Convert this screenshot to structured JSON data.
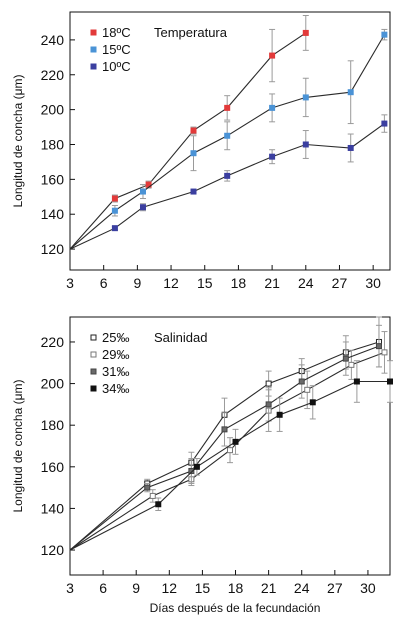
{
  "colors": {
    "axis": "#111111",
    "line": "#2b2b2b",
    "temp_18": "#e23a3a",
    "temp_15": "#4a93d6",
    "temp_10": "#3b3fa0",
    "errorbar": "#9a9a9a"
  },
  "xlabel_shared": "Días después de la fecundación",
  "chart_data": [
    {
      "type": "line",
      "ylabel": "Longitud de concha (μm)",
      "legend_title": "Temperatura",
      "legend_placement": "top-left",
      "x_ticks": [
        3,
        6,
        9,
        12,
        15,
        18,
        21,
        24,
        27,
        30
      ],
      "y_ticks": [
        120,
        140,
        160,
        180,
        200,
        220,
        240
      ],
      "xlim": [
        3,
        31.5
      ],
      "ylim": [
        108,
        256
      ],
      "series": [
        {
          "name": "18ºC",
          "marker": "square-red",
          "points": [
            {
              "x": 3,
              "y": 120,
              "err": 0
            },
            {
              "x": 7,
              "y": 149,
              "err": 2
            },
            {
              "x": 10,
              "y": 157,
              "err": 2
            },
            {
              "x": 14,
              "y": 188,
              "err": 2
            },
            {
              "x": 17,
              "y": 201,
              "err": 7
            },
            {
              "x": 21,
              "y": 231,
              "err": 15
            },
            {
              "x": 24,
              "y": 244,
              "err": 10
            }
          ]
        },
        {
          "name": "15ºC",
          "marker": "square-blue",
          "points": [
            {
              "x": 3,
              "y": 120,
              "err": 0
            },
            {
              "x": 7,
              "y": 142,
              "err": 3
            },
            {
              "x": 9.5,
              "y": 153,
              "err": 4
            },
            {
              "x": 14,
              "y": 175,
              "err": 10
            },
            {
              "x": 17,
              "y": 185,
              "err": 8
            },
            {
              "x": 21,
              "y": 201,
              "err": 8
            },
            {
              "x": 24,
              "y": 207,
              "err": 11
            },
            {
              "x": 28,
              "y": 210,
              "err": 18
            },
            {
              "x": 31,
              "y": 243,
              "err": 3
            }
          ]
        },
        {
          "name": "10ºC",
          "marker": "square-navy",
          "points": [
            {
              "x": 3,
              "y": 120,
              "err": 0
            },
            {
              "x": 7,
              "y": 132,
              "err": 1
            },
            {
              "x": 9.5,
              "y": 144,
              "err": 2
            },
            {
              "x": 14,
              "y": 153,
              "err": 1
            },
            {
              "x": 17,
              "y": 162,
              "err": 3
            },
            {
              "x": 21,
              "y": 173,
              "err": 4
            },
            {
              "x": 24,
              "y": 180,
              "err": 8
            },
            {
              "x": 28,
              "y": 178,
              "err": 8
            },
            {
              "x": 31,
              "y": 192,
              "err": 5
            }
          ]
        }
      ]
    },
    {
      "type": "line",
      "ylabel": "Longitud de concha (μm)",
      "xlabel": "Días después de la fecundación",
      "legend_title": "Salinidad",
      "legend_placement": "top-left",
      "x_ticks": [
        3,
        6,
        9,
        12,
        15,
        18,
        21,
        24,
        27,
        30
      ],
      "y_ticks": [
        120,
        140,
        160,
        180,
        200,
        220
      ],
      "xlim": [
        3,
        32
      ],
      "ylim": [
        108,
        232
      ],
      "series": [
        {
          "name": "25‰",
          "marker": "open-square",
          "points": [
            {
              "x": 3,
              "y": 120,
              "err": 0
            },
            {
              "x": 10,
              "y": 152,
              "err": 2
            },
            {
              "x": 14,
              "y": 162,
              "err": 5
            },
            {
              "x": 17,
              "y": 185,
              "err": 8
            },
            {
              "x": 21,
              "y": 200,
              "err": 6
            },
            {
              "x": 24,
              "y": 206,
              "err": 6
            },
            {
              "x": 28,
              "y": 215,
              "err": 8
            },
            {
              "x": 31,
              "y": 220,
              "err": 12
            }
          ]
        },
        {
          "name": "29‰",
          "marker": "open-square-grey",
          "points": [
            {
              "x": 3,
              "y": 120,
              "err": 0
            },
            {
              "x": 10.5,
              "y": 146,
              "err": 3
            },
            {
              "x": 14,
              "y": 154,
              "err": 3
            },
            {
              "x": 17.5,
              "y": 168,
              "err": 6
            },
            {
              "x": 21,
              "y": 187,
              "err": 10
            },
            {
              "x": 24.5,
              "y": 197,
              "err": 9
            },
            {
              "x": 28.5,
              "y": 209,
              "err": 7
            },
            {
              "x": 31.5,
              "y": 215,
              "err": 10
            }
          ]
        },
        {
          "name": "31‰",
          "marker": "filled-square-grey",
          "points": [
            {
              "x": 3,
              "y": 120,
              "err": 0
            },
            {
              "x": 10,
              "y": 150,
              "err": 2
            },
            {
              "x": 14,
              "y": 158,
              "err": 6
            },
            {
              "x": 17,
              "y": 178,
              "err": 8
            },
            {
              "x": 21,
              "y": 190,
              "err": 8
            },
            {
              "x": 24,
              "y": 201,
              "err": 8
            },
            {
              "x": 28,
              "y": 212,
              "err": 8
            },
            {
              "x": 31,
              "y": 218,
              "err": 10
            }
          ]
        },
        {
          "name": "34‰",
          "marker": "filled-square-black",
          "points": [
            {
              "x": 3,
              "y": 120,
              "err": 0
            },
            {
              "x": 11,
              "y": 142,
              "err": 3
            },
            {
              "x": 14.5,
              "y": 160,
              "err": 4
            },
            {
              "x": 18,
              "y": 172,
              "err": 6
            },
            {
              "x": 22,
              "y": 185,
              "err": 8
            },
            {
              "x": 25,
              "y": 191,
              "err": 8
            },
            {
              "x": 29,
              "y": 201,
              "err": 10
            },
            {
              "x": 32,
              "y": 201,
              "err": 10
            }
          ]
        }
      ]
    }
  ]
}
